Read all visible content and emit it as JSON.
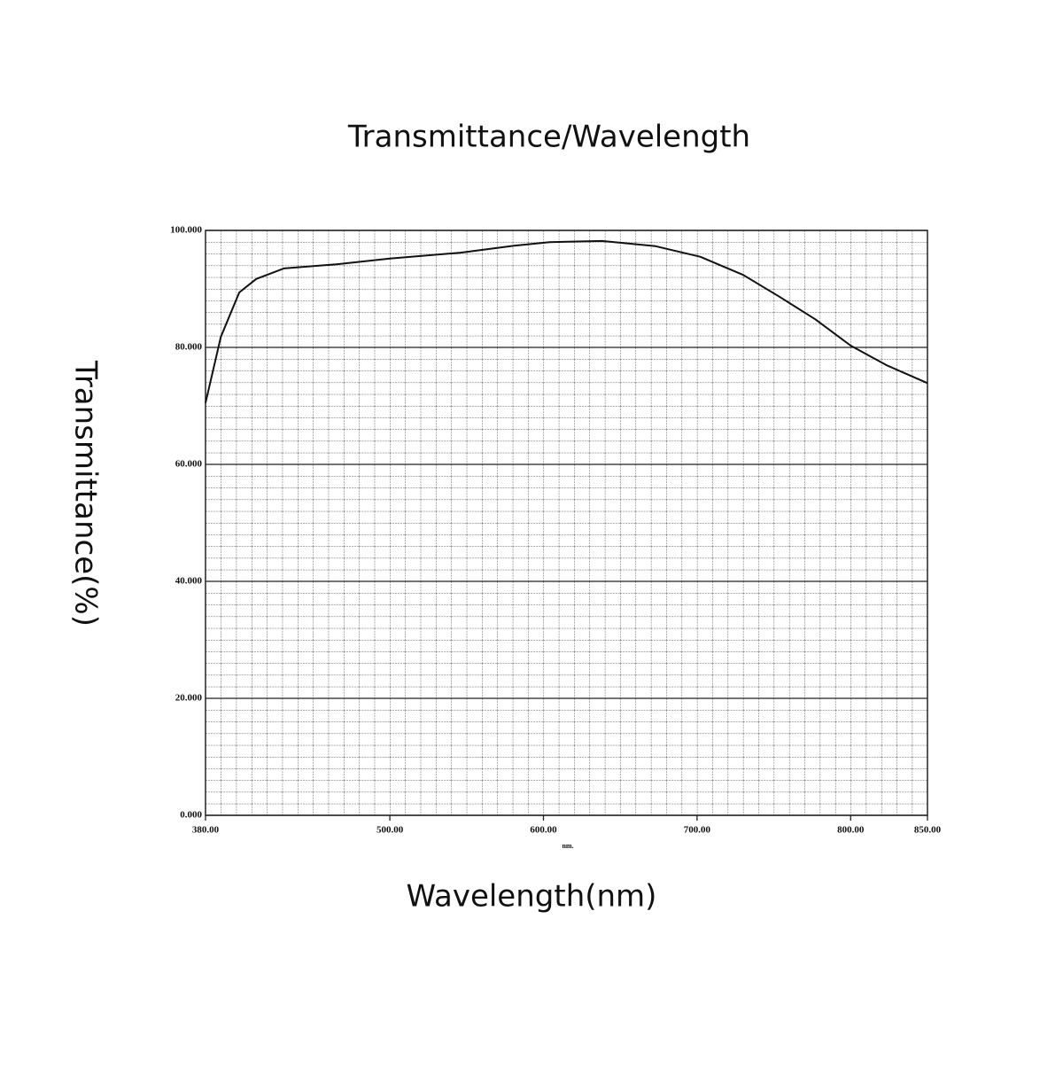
{
  "chart_data": {
    "type": "line",
    "title": "Transmittance/Wavelength",
    "x_label": "Wavelength(nm)",
    "y_label": "Transmittance(%)",
    "x_unit": "nm.",
    "color": "#111111",
    "grid": true,
    "x": [
      380,
      390,
      402,
      413,
      431,
      465,
      500,
      546,
      581,
      604,
      638,
      673,
      702,
      730,
      754,
      777,
      800,
      823,
      850
    ],
    "values": [
      70.5,
      81.8,
      89.4,
      91.7,
      93.5,
      94.2,
      95.2,
      96.2,
      97.4,
      98.0,
      98.2,
      97.3,
      95.5,
      92.4,
      88.6,
      84.8,
      80.3,
      77.0,
      73.9
    ],
    "xlim": [
      380,
      850
    ],
    "ylim": [
      0,
      100
    ],
    "xticks": [
      {
        "value": 380,
        "label": "380.00"
      },
      {
        "value": 500,
        "label": "500.00"
      },
      {
        "value": 600,
        "label": "600.00"
      },
      {
        "value": 700,
        "label": "700.00"
      },
      {
        "value": 800,
        "label": "800.00"
      },
      {
        "value": 850,
        "label": "850.00"
      }
    ],
    "yticks": [
      {
        "value": 0,
        "label": "0.000"
      },
      {
        "value": 20,
        "label": "20.000"
      },
      {
        "value": 40,
        "label": "40.000"
      },
      {
        "value": 60,
        "label": "60.000"
      },
      {
        "value": 80,
        "label": "80.000"
      },
      {
        "value": 100,
        "label": "100.000"
      }
    ]
  }
}
